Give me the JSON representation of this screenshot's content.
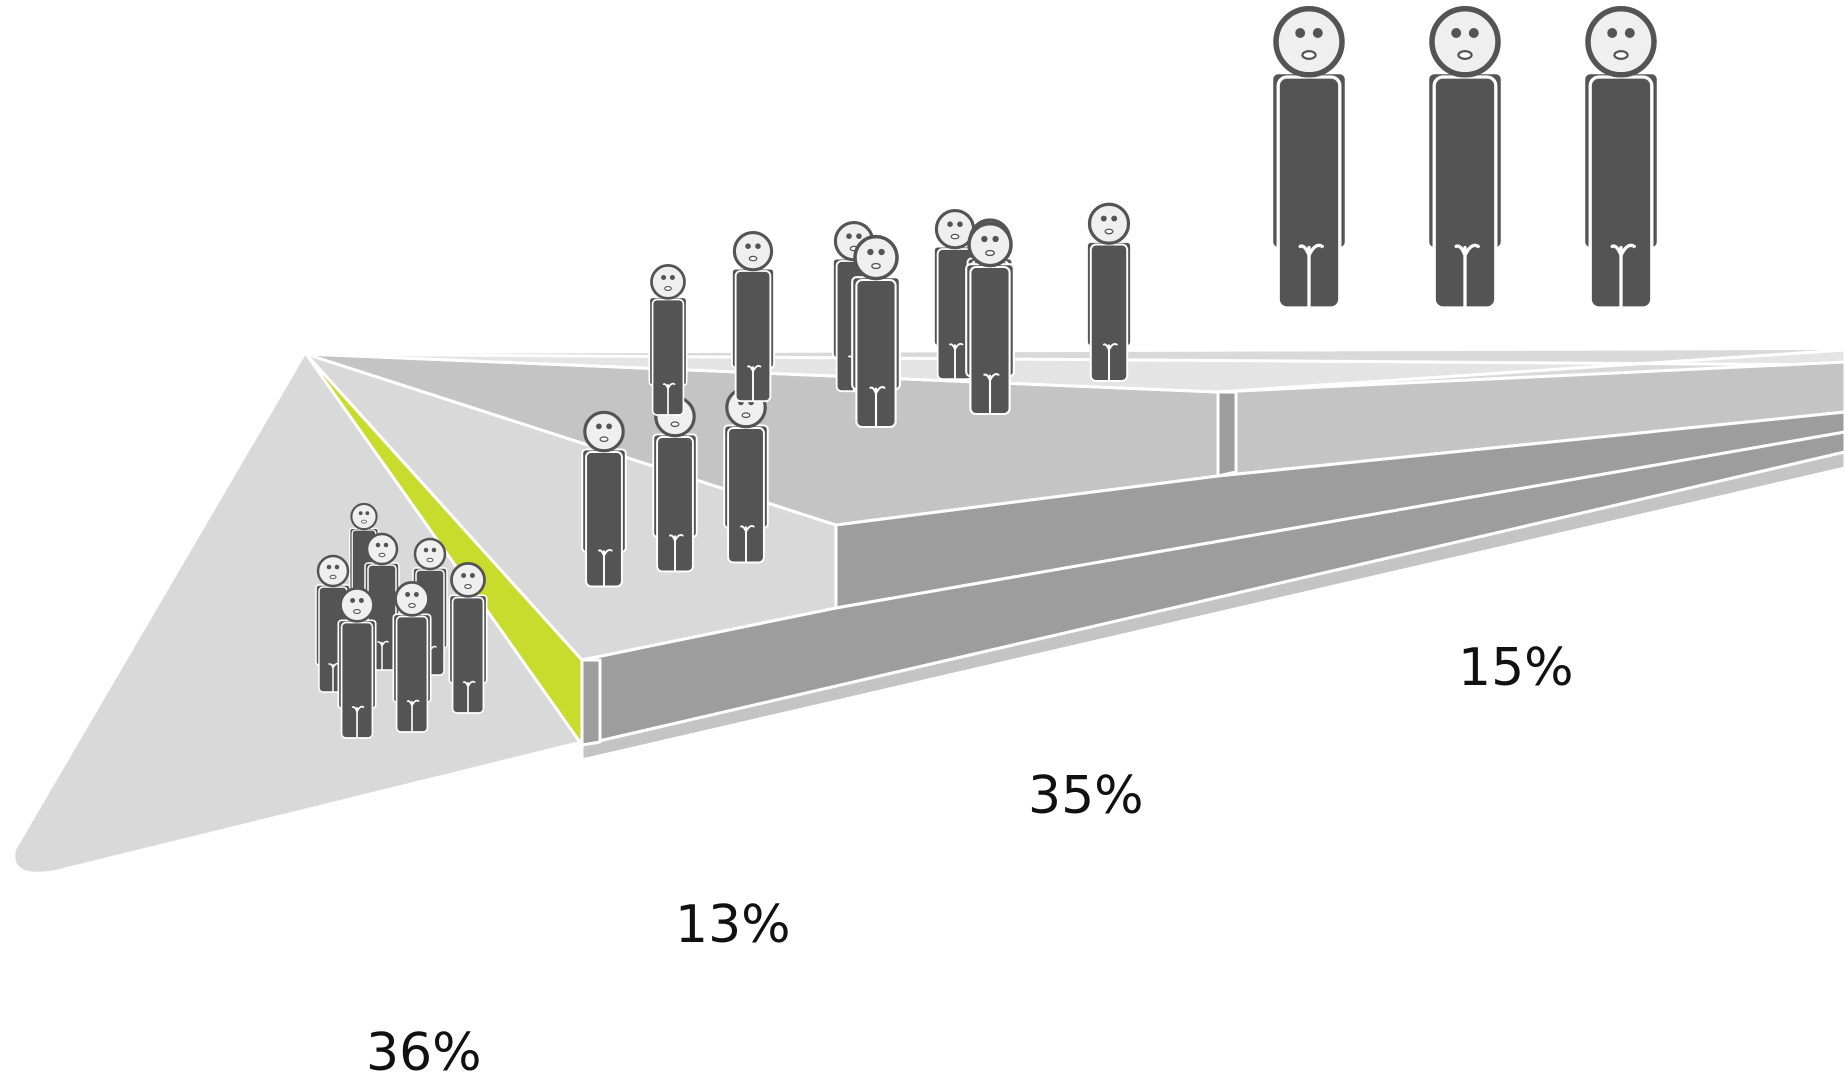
{
  "chart_data": {
    "type": "bar",
    "categories": [
      "",
      "",
      "",
      ""
    ],
    "values": [
      36,
      13,
      35,
      15
    ],
    "value_labels": [
      "36%",
      "13%",
      "35%",
      "15%"
    ],
    "title": "",
    "xlabel": "",
    "ylabel": "",
    "figures_per_step": [
      7,
      3,
      9,
      3
    ],
    "style": "3d-isometric-steps-with-pictogram-people",
    "grid": false,
    "legend": "none"
  },
  "colors": {
    "background": "#ffffff",
    "floor": "#d9d9d9",
    "step_top": "#c4c4c4",
    "step_front": "#9d9d9d",
    "accent_1": "#c8dc2e",
    "accent_2": "#8fc33b",
    "accent_3": "#77a22f",
    "person_body": "#545454",
    "person_face": "#efefef",
    "person_outline": "#ffffff",
    "label_text": "#111111"
  },
  "icons": {
    "person": "person-icon"
  }
}
